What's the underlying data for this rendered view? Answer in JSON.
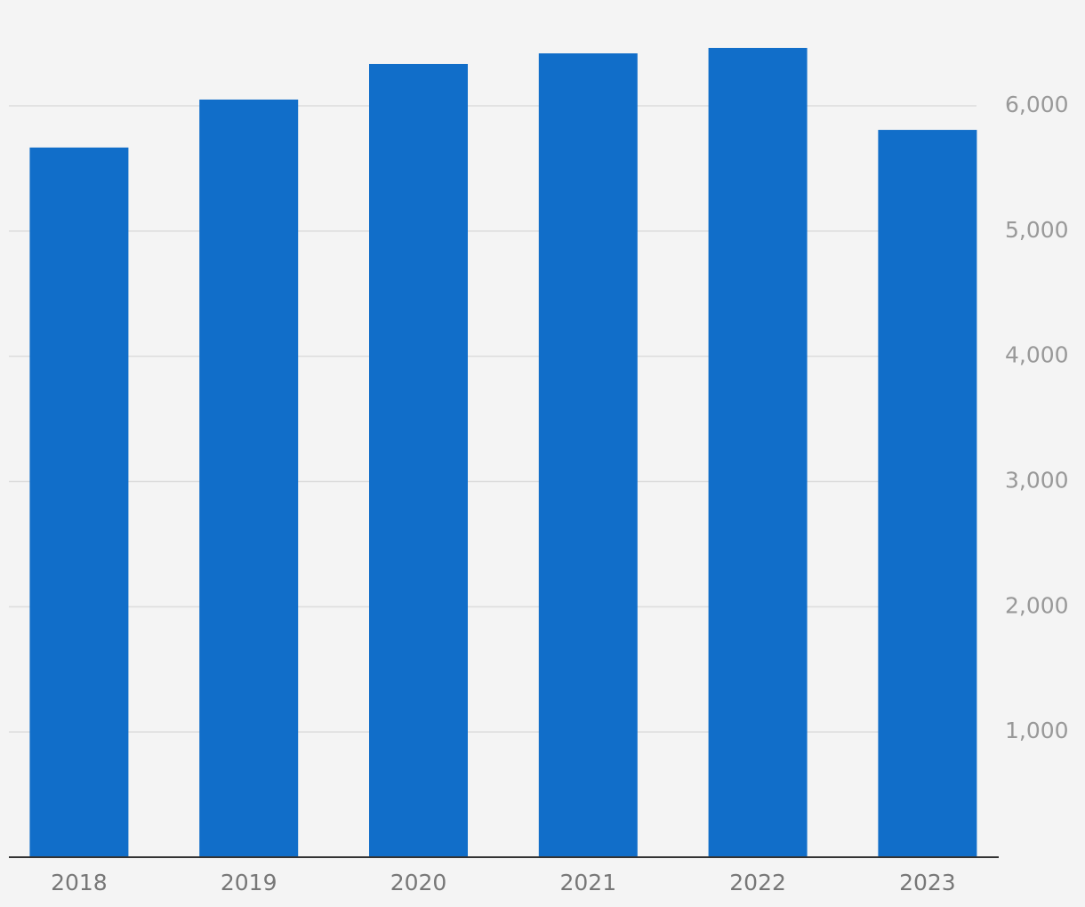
{
  "chart_data": {
    "type": "bar",
    "categories": [
      "2018",
      "2019",
      "2020",
      "2021",
      "2022",
      "2023"
    ],
    "values": [
      5667,
      6050,
      6334,
      6419,
      6462,
      5808
    ],
    "color": "#116ec9",
    "ylim": [
      0,
      6500
    ],
    "yticks": [
      {
        "value": 1000,
        "label": "1,000"
      },
      {
        "value": 2000,
        "label": "2,000"
      },
      {
        "value": 3000,
        "label": "3,000"
      },
      {
        "value": 4000,
        "label": "4,000"
      },
      {
        "value": 5000,
        "label": "5,000"
      },
      {
        "value": 6000,
        "label": "6,000"
      }
    ],
    "grid": true
  }
}
